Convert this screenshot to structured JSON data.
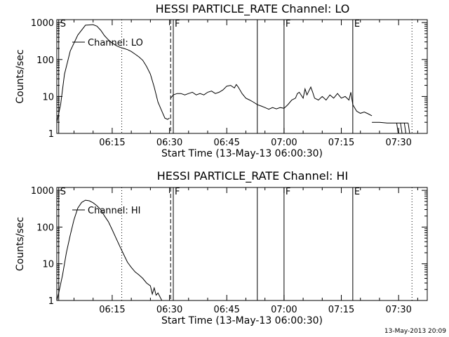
{
  "stamp": "13-May-2013 20:09",
  "chart_data": [
    {
      "type": "line",
      "title": "HESSI PARTICLE_RATE Channel: LO",
      "ylabel": "Counts/sec",
      "xlabel": "Start Time (13-May-13 06:00:30)",
      "y_scale": "log",
      "ylim": [
        1,
        1200
      ],
      "xlim_minutes_after_0600": [
        0.5,
        97.5
      ],
      "x_ticks": [
        "06:15",
        "06:30",
        "06:45",
        "07:00",
        "07:15",
        "07:30"
      ],
      "x_tick_minutes": [
        15,
        30,
        45,
        60,
        75,
        90
      ],
      "y_ticks": [
        "1",
        "10",
        "100",
        "1000"
      ],
      "y_tick_values": [
        1,
        10,
        100,
        1000
      ],
      "legend": {
        "label": "Channel: LO",
        "placement": "top-left"
      },
      "markers": [
        {
          "label": "S",
          "x": 1,
          "style": "solid"
        },
        {
          "label": "",
          "x": 17.5,
          "style": "dotted"
        },
        {
          "label": "",
          "x": 30.3,
          "style": "dashed"
        },
        {
          "label": "F",
          "x": 31,
          "style": "solid"
        },
        {
          "label": "",
          "x": 53,
          "style": "solid"
        },
        {
          "label": "F",
          "x": 60,
          "style": "solid"
        },
        {
          "label": "E",
          "x": 78,
          "style": "solid"
        },
        {
          "label": "",
          "x": 93.5,
          "style": "dotted"
        }
      ],
      "series": [
        {
          "name": "Channel: LO",
          "x": [
            0.5,
            1.5,
            2.5,
            4,
            6,
            8,
            10,
            11,
            12,
            13,
            14,
            15,
            16,
            17,
            18,
            19,
            20,
            21,
            22,
            23,
            24,
            25,
            26,
            27,
            28,
            28.8,
            29.5,
            30
          ],
          "y": [
            2,
            6,
            40,
            170,
            460,
            850,
            880,
            800,
            620,
            440,
            340,
            280,
            240,
            215,
            200,
            185,
            165,
            140,
            118,
            95,
            65,
            40,
            18,
            7,
            4,
            2.6,
            2.4,
            2.6
          ]
        },
        {
          "name": "Channel: LO",
          "x": [
            30.3,
            31,
            32,
            33,
            34,
            35,
            36,
            37,
            38,
            39,
            40,
            41,
            42,
            43,
            44,
            45,
            46,
            47,
            47.5,
            48,
            49,
            50,
            51,
            52,
            53,
            54,
            55,
            56,
            57,
            58,
            59,
            60,
            61,
            62,
            63,
            63.5,
            64,
            65,
            65.5,
            66,
            67,
            67.5,
            68,
            69,
            70,
            71,
            72,
            73,
            74,
            75,
            76,
            77,
            77.5,
            78,
            79,
            80,
            81,
            82,
            83
          ],
          "y": [
            9,
            11,
            12,
            12,
            11,
            12,
            13,
            11,
            12,
            11,
            13,
            14,
            12,
            13,
            15,
            19,
            20,
            17,
            21,
            18,
            12,
            9,
            8,
            7,
            6,
            5.5,
            5,
            4.5,
            5,
            4.6,
            5,
            4.8,
            6,
            8,
            9,
            12,
            13,
            9,
            16,
            11,
            18,
            13,
            9,
            8,
            10,
            8,
            11,
            9,
            12,
            9,
            10,
            8,
            13,
            6,
            4,
            3.5,
            3.8,
            3.4,
            3
          ]
        },
        {
          "name": "Channel: LO",
          "x": [
            83,
            85,
            87,
            88.5
          ],
          "y": [
            2,
            2,
            1.9,
            1.9
          ]
        },
        {
          "name": "Channel: LO",
          "x": [
            88.5,
            89.5,
            90.5,
            91.5,
            92.5
          ],
          "y": [
            1.9,
            1.9,
            1.9,
            1.9,
            1.9
          ]
        }
      ]
    },
    {
      "type": "line",
      "title": "HESSI PARTICLE_RATE Channel: HI",
      "ylabel": "Counts/sec",
      "xlabel": "Start Time (13-May-13 06:00:30)",
      "y_scale": "log",
      "ylim": [
        1,
        1200
      ],
      "xlim_minutes_after_0600": [
        0.5,
        97.5
      ],
      "x_ticks": [
        "06:15",
        "06:30",
        "06:45",
        "07:00",
        "07:15",
        "07:30"
      ],
      "x_tick_minutes": [
        15,
        30,
        45,
        60,
        75,
        90
      ],
      "y_ticks": [
        "1",
        "10",
        "100",
        "1000"
      ],
      "y_tick_values": [
        1,
        10,
        100,
        1000
      ],
      "legend": {
        "label": "Channel: HI",
        "placement": "top-left"
      },
      "markers": [
        {
          "label": "S",
          "x": 1,
          "style": "solid"
        },
        {
          "label": "",
          "x": 17.5,
          "style": "dotted"
        },
        {
          "label": "",
          "x": 30.3,
          "style": "dashed"
        },
        {
          "label": "F",
          "x": 31,
          "style": "solid"
        },
        {
          "label": "",
          "x": 53,
          "style": "solid"
        },
        {
          "label": "F",
          "x": 60,
          "style": "solid"
        },
        {
          "label": "E",
          "x": 78,
          "style": "solid"
        },
        {
          "label": "",
          "x": 93.5,
          "style": "dotted"
        }
      ],
      "series": [
        {
          "name": "Channel: HI",
          "x": [
            0.5,
            1,
            2,
            3,
            4,
            5,
            6,
            7,
            8,
            9,
            10,
            11,
            12,
            13,
            14,
            15,
            16,
            17,
            18,
            19,
            20,
            21,
            22,
            23,
            24,
            25,
            25.5,
            26,
            26.5,
            27,
            28
          ],
          "y": [
            1,
            1.6,
            5,
            20,
            60,
            160,
            330,
            470,
            540,
            520,
            460,
            380,
            300,
            200,
            140,
            85,
            50,
            30,
            18,
            11,
            8,
            6,
            5,
            4,
            3,
            2.5,
            1.5,
            2.2,
            1.4,
            1.6,
            1
          ]
        }
      ]
    }
  ]
}
